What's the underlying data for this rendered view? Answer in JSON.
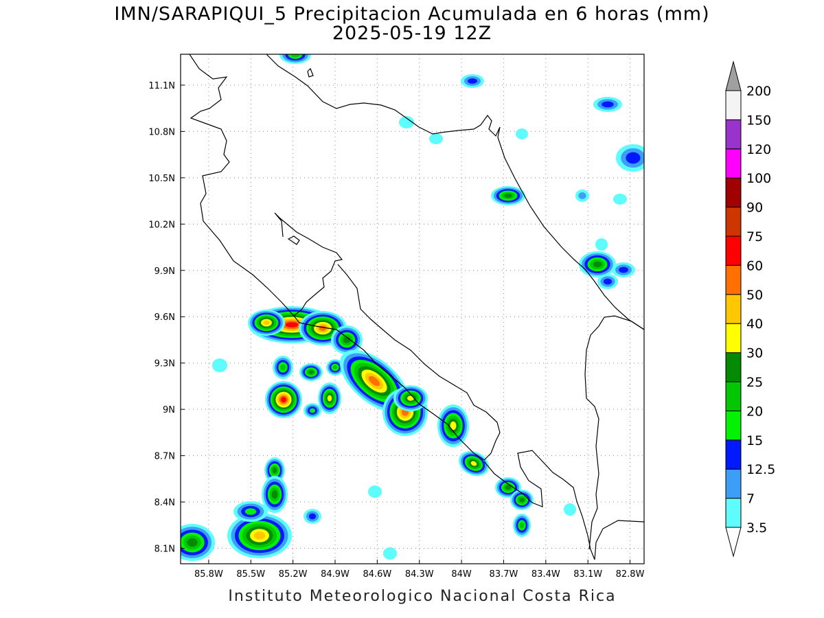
{
  "title": {
    "line1": "IMN/SARAPIQUI_5 Precipitacion Acumulada en 6 horas (mm)",
    "line2": "2025-05-19 12Z"
  },
  "footer": "Instituto Meteorologico Nacional Costa Rica",
  "map": {
    "lon_range": [
      -86.0,
      -82.7
    ],
    "lat_range": [
      8.0,
      11.3
    ],
    "lat_ticks": [
      "11.1N",
      "10.8N",
      "10.5N",
      "10.2N",
      "9.9N",
      "9.6N",
      "9.3N",
      "9N",
      "8.7N",
      "8.4N",
      "8.1N"
    ],
    "lon_ticks": [
      "85.8W",
      "85.5W",
      "85.2W",
      "84.9W",
      "84.6W",
      "84.3W",
      "84W",
      "83.7W",
      "83.4W",
      "83.1W",
      "82.8W"
    ],
    "grid": "dotted"
  },
  "colorbar": {
    "labels": [
      "3.5",
      "7",
      "12.5",
      "15",
      "20",
      "25",
      "30",
      "40",
      "50",
      "60",
      "75",
      "90",
      "100",
      "120",
      "150",
      "200"
    ],
    "colors": [
      "#5efcfc",
      "#3d9ef8",
      "#0019ff",
      "#04f104",
      "#02c702",
      "#048a04",
      "#ffff00",
      "#ffc800",
      "#ff7000",
      "#ff0000",
      "#cd3600",
      "#a00000",
      "#ff00ff",
      "#9933cc",
      "#f4f4f4",
      "#a0a0a0"
    ]
  }
}
